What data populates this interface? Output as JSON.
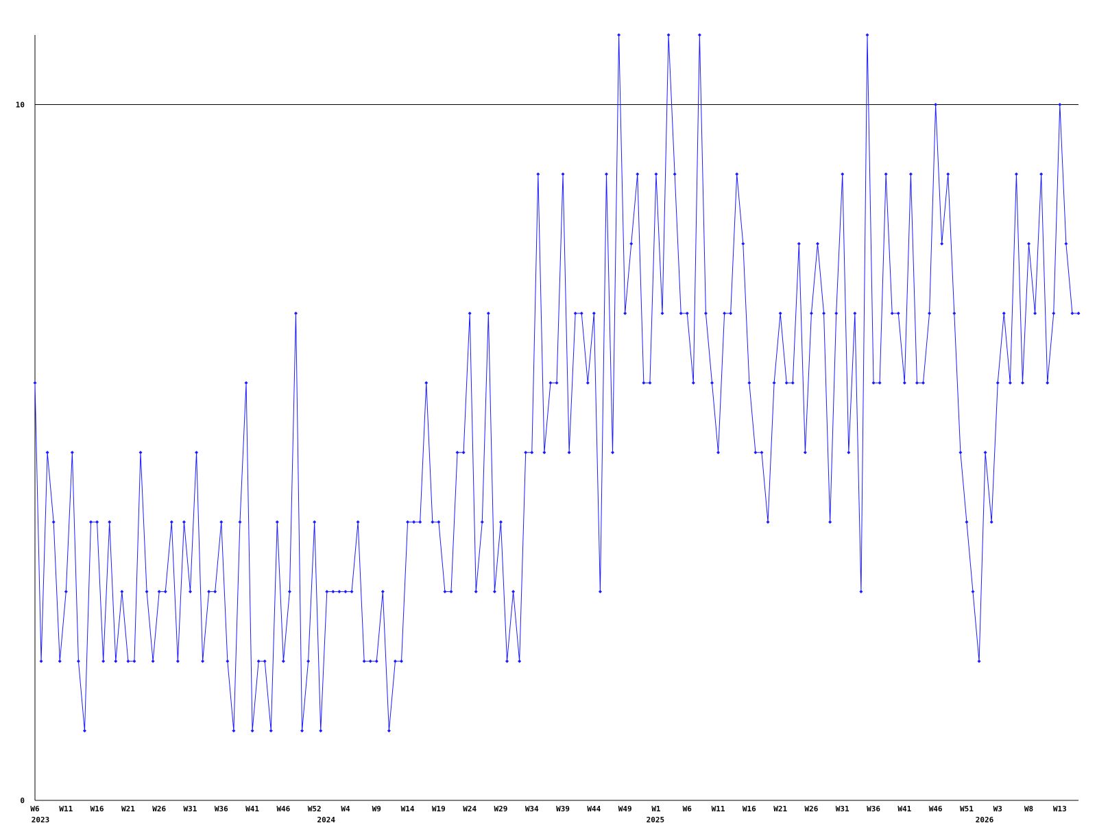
{
  "chart_data": {
    "type": "line",
    "categories": [
      "W6",
      null,
      null,
      null,
      null,
      "W11",
      null,
      null,
      null,
      null,
      "W16",
      null,
      null,
      null,
      null,
      "W21",
      null,
      null,
      null,
      null,
      "W26",
      null,
      null,
      null,
      null,
      "W31",
      null,
      null,
      null,
      null,
      "W36",
      null,
      null,
      null,
      null,
      "W41",
      null,
      null,
      null,
      null,
      "W46",
      null,
      null,
      null,
      null,
      "W52",
      null,
      null,
      null,
      null,
      "W4",
      null,
      null,
      null,
      null,
      "W9",
      null,
      null,
      null,
      null,
      "W14",
      null,
      null,
      null,
      null,
      "W19",
      null,
      null,
      null,
      null,
      "W24",
      null,
      null,
      null,
      null,
      "W29",
      null,
      null,
      null,
      null,
      "W34",
      null,
      null,
      null,
      null,
      "W39",
      null,
      null,
      null,
      null,
      "W44",
      null,
      null,
      null,
      null,
      "W49",
      null,
      null,
      null,
      null,
      "W1",
      null,
      null,
      null,
      null,
      "W6",
      null,
      null,
      null,
      null,
      "W11",
      null,
      null,
      null,
      null,
      "W16",
      null,
      null,
      null,
      null,
      "W21",
      null,
      null,
      null,
      null,
      "W26",
      null,
      null,
      null,
      null,
      "W31",
      null,
      null,
      null,
      null,
      "W36",
      null,
      null,
      null,
      null,
      "W41",
      null,
      null,
      null,
      null,
      "W46",
      null,
      null,
      null,
      null,
      "W51",
      null,
      null,
      null,
      null,
      "W3",
      null,
      null,
      null,
      null,
      "W8",
      null,
      null,
      null,
      null,
      "W13",
      null,
      null,
      null
    ],
    "year_labels": [
      {
        "label": "2023",
        "index": 0
      },
      {
        "label": "2024",
        "index": 46
      },
      {
        "label": "2025",
        "index": 99
      },
      {
        "label": "2026",
        "index": 152
      }
    ],
    "series": [
      {
        "color": "#1a1aff",
        "values": [
          6,
          2,
          5,
          4,
          2,
          3,
          5,
          2,
          1,
          4,
          4,
          2,
          4,
          2,
          3,
          2,
          2,
          5,
          3,
          2,
          3,
          3,
          4,
          2,
          4,
          3,
          5,
          2,
          3,
          3,
          4,
          2,
          1,
          4,
          6,
          1,
          2,
          2,
          1,
          4,
          2,
          3,
          7,
          1,
          2,
          4,
          1,
          3,
          3,
          3,
          3,
          3,
          4,
          2,
          2,
          2,
          3,
          1,
          2,
          2,
          4,
          4,
          4,
          6,
          4,
          4,
          3,
          3,
          5,
          5,
          7,
          3,
          4,
          7,
          3,
          4,
          2,
          3,
          2,
          5,
          5,
          9,
          5,
          6,
          6,
          9,
          5,
          7,
          7,
          6,
          7,
          3,
          9,
          5,
          11,
          7,
          8,
          9,
          6,
          6,
          9,
          7,
          11,
          9,
          7,
          7,
          6,
          11,
          7,
          6,
          5,
          7,
          7,
          9,
          8,
          6,
          5,
          5,
          4,
          6,
          7,
          6,
          6,
          8,
          5,
          7,
          8,
          7,
          4,
          7,
          9,
          5,
          7,
          3,
          11,
          6,
          6,
          9,
          7,
          7,
          6,
          9,
          6,
          6,
          7,
          10,
          8,
          9,
          7,
          5,
          4,
          3,
          2,
          5,
          4,
          6,
          7,
          6,
          9,
          6,
          8,
          7,
          9,
          6,
          7,
          10,
          8,
          7,
          7
        ]
      }
    ],
    "ylim": [
      0,
      11
    ],
    "yticks": [
      0,
      10
    ],
    "grid": true
  }
}
